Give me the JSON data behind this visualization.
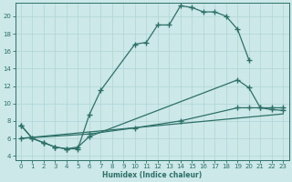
{
  "xlabel": "Humidex (Indice chaleur)",
  "bg_color": "#cce8e8",
  "line_color": "#2d7068",
  "grid_color": "#b0d4d4",
  "xlim": [
    -0.5,
    23.5
  ],
  "ylim": [
    3.5,
    21.5
  ],
  "yticks": [
    4,
    6,
    8,
    10,
    12,
    14,
    16,
    18,
    20
  ],
  "xticks": [
    0,
    1,
    2,
    3,
    4,
    5,
    6,
    7,
    8,
    9,
    10,
    11,
    12,
    13,
    14,
    15,
    16,
    17,
    18,
    19,
    20,
    21,
    22,
    23
  ],
  "line1_x": [
    0,
    1,
    2,
    3,
    4,
    5,
    6,
    7,
    10,
    11,
    12,
    13,
    14,
    15,
    16,
    17,
    18,
    19,
    20
  ],
  "line1_y": [
    7.5,
    6.0,
    5.5,
    5.0,
    4.8,
    4.8,
    8.7,
    11.5,
    16.8,
    17.0,
    19.0,
    19.0,
    21.2,
    21.0,
    20.5,
    20.5,
    20.0,
    18.5,
    15.0
  ],
  "line2_x": [
    0,
    1,
    2,
    3,
    4,
    5,
    6,
    19,
    20,
    21,
    22,
    23
  ],
  "line2_y": [
    7.5,
    6.0,
    5.5,
    5.0,
    4.8,
    5.0,
    6.2,
    12.7,
    11.8,
    9.5,
    9.3,
    9.2
  ],
  "line3_x": [
    0,
    6,
    10,
    14,
    19,
    20,
    21,
    22,
    23
  ],
  "line3_y": [
    6.0,
    6.5,
    7.2,
    8.0,
    9.5,
    9.5,
    9.5,
    9.5,
    9.5
  ],
  "line4_x": [
    0,
    23
  ],
  "line4_y": [
    6.0,
    8.8
  ]
}
